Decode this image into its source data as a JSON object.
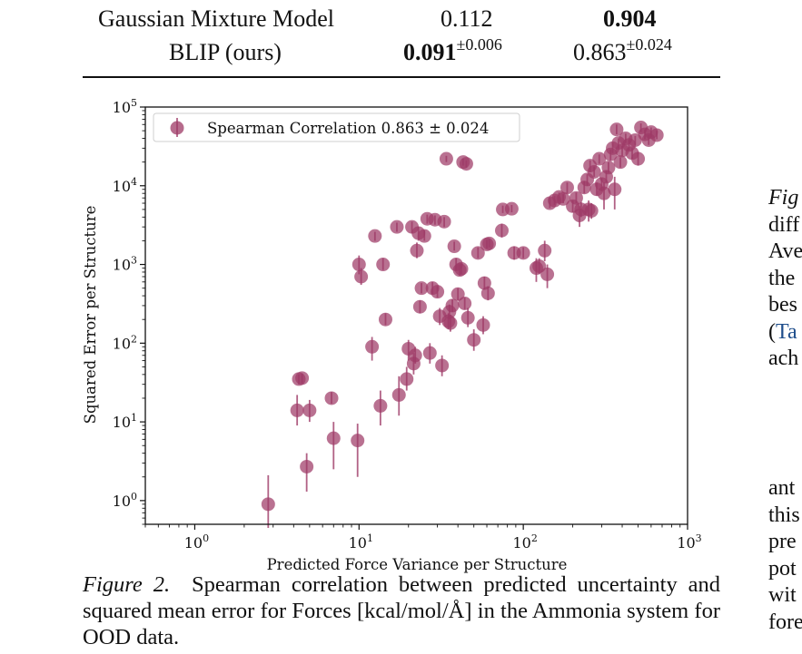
{
  "table": {
    "rows": [
      {
        "method": "Gaussian Mixture Model",
        "col1": "0.112",
        "col1_pm": "",
        "col2": "0.904",
        "col2_pm": ""
      },
      {
        "method": "BLIP (ours)",
        "col1": "0.091",
        "col1_pm": "±0.006",
        "col2": "0.863",
        "col2_pm": "±0.024"
      }
    ]
  },
  "caption": {
    "label": "Figure 2.",
    "text": "Spearman correlation between predicted uncertainty and squared mean error for Forces [kcal/mol/Å] in the Ammonia system for OOD data."
  },
  "side_text": {
    "lines_top": [
      "Fig",
      "diff",
      "Ave",
      "the",
      "bes",
      "(",
      "Ta",
      "ach"
    ],
    "lines_bottom": [
      "ant",
      "this",
      "pre",
      "pot",
      "wit",
      "fore"
    ]
  },
  "chart_data": {
    "type": "scatter",
    "title": "",
    "xlabel": "Predicted Force Variance per Structure",
    "ylabel": "Squared Error per Structure",
    "xscale": "log",
    "yscale": "log",
    "xlim": [
      0.5,
      1000
    ],
    "ylim": [
      0.5,
      100000
    ],
    "xticks": [
      "10^0",
      "10^1",
      "10^2",
      "10^3"
    ],
    "yticks": [
      "10^0",
      "10^1",
      "10^2",
      "10^3",
      "10^4",
      "10^5"
    ],
    "legend": {
      "placement": "top-left",
      "label": "Spearman Correlation 0.863 ± 0.024"
    },
    "marker_color": "#9e3a66",
    "series": [
      {
        "name": "Spearman Correlation 0.863 ± 0.024",
        "points": [
          {
            "x": 2.8,
            "y": 0.9,
            "lo": 0.45,
            "hi": 2.1
          },
          {
            "x": 4.2,
            "y": 14,
            "lo": 9,
            "hi": 22
          },
          {
            "x": 4.3,
            "y": 35,
            "lo": 30,
            "hi": 40
          },
          {
            "x": 4.5,
            "y": 36,
            "lo": 31,
            "hi": 41
          },
          {
            "x": 4.8,
            "y": 2.7,
            "lo": 1.3,
            "hi": 4
          },
          {
            "x": 5.0,
            "y": 14,
            "lo": 10,
            "hi": 19
          },
          {
            "x": 6.8,
            "y": 20,
            "lo": 17,
            "hi": 24
          },
          {
            "x": 7.0,
            "y": 6.2,
            "lo": 2.5,
            "hi": 10
          },
          {
            "x": 9.8,
            "y": 5.8,
            "lo": 2.0,
            "hi": 9.5
          },
          {
            "x": 10,
            "y": 1000,
            "lo": 750,
            "hi": 1300
          },
          {
            "x": 10.3,
            "y": 700,
            "lo": 550,
            "hi": 900
          },
          {
            "x": 12,
            "y": 90,
            "lo": 60,
            "hi": 120
          },
          {
            "x": 12.5,
            "y": 2300,
            "lo": 2000,
            "hi": 2600
          },
          {
            "x": 13.5,
            "y": 16,
            "lo": 9,
            "hi": 25
          },
          {
            "x": 14,
            "y": 1000,
            "lo": 850,
            "hi": 1200
          },
          {
            "x": 14.5,
            "y": 200,
            "lo": 170,
            "hi": 240
          },
          {
            "x": 17,
            "y": 3000,
            "lo": 2600,
            "hi": 3400
          },
          {
            "x": 17.5,
            "y": 22,
            "lo": 12,
            "hi": 38
          },
          {
            "x": 19.5,
            "y": 35,
            "lo": 25,
            "hi": 50
          },
          {
            "x": 20,
            "y": 85,
            "lo": 60,
            "hi": 110
          },
          {
            "x": 21,
            "y": 3000,
            "lo": 2500,
            "hi": 3500
          },
          {
            "x": 21.5,
            "y": 55,
            "lo": 40,
            "hi": 75
          },
          {
            "x": 22,
            "y": 70,
            "lo": 55,
            "hi": 90
          },
          {
            "x": 22.5,
            "y": 1500,
            "lo": 1200,
            "hi": 1900
          },
          {
            "x": 23,
            "y": 2500,
            "lo": 2000,
            "hi": 3000
          },
          {
            "x": 23.5,
            "y": 290,
            "lo": 240,
            "hi": 350
          },
          {
            "x": 24,
            "y": 500,
            "lo": 430,
            "hi": 580
          },
          {
            "x": 25,
            "y": 2300,
            "lo": 2000,
            "hi": 2700
          },
          {
            "x": 26,
            "y": 3800,
            "lo": 3300,
            "hi": 4300
          },
          {
            "x": 27,
            "y": 75,
            "lo": 55,
            "hi": 100
          },
          {
            "x": 28,
            "y": 500,
            "lo": 420,
            "hi": 600
          },
          {
            "x": 29,
            "y": 3700,
            "lo": 3200,
            "hi": 4200
          },
          {
            "x": 30,
            "y": 450,
            "lo": 380,
            "hi": 530
          },
          {
            "x": 31,
            "y": 220,
            "lo": 170,
            "hi": 280
          },
          {
            "x": 32,
            "y": 52,
            "lo": 38,
            "hi": 70
          },
          {
            "x": 33,
            "y": 3500,
            "lo": 3000,
            "hi": 4000
          },
          {
            "x": 34,
            "y": 22000,
            "lo": 20000,
            "hi": 24000
          },
          {
            "x": 35,
            "y": 190,
            "lo": 150,
            "hi": 240
          },
          {
            "x": 35.5,
            "y": 250,
            "lo": 200,
            "hi": 310
          },
          {
            "x": 36,
            "y": 180,
            "lo": 140,
            "hi": 230
          },
          {
            "x": 37,
            "y": 300,
            "lo": 250,
            "hi": 360
          },
          {
            "x": 38,
            "y": 1700,
            "lo": 1500,
            "hi": 1950
          },
          {
            "x": 39,
            "y": 1000,
            "lo": 850,
            "hi": 1200
          },
          {
            "x": 40,
            "y": 420,
            "lo": 350,
            "hi": 500
          },
          {
            "x": 41,
            "y": 850,
            "lo": 720,
            "hi": 1000
          },
          {
            "x": 42,
            "y": 880,
            "lo": 750,
            "hi": 1030
          },
          {
            "x": 43,
            "y": 20000,
            "lo": 18000,
            "hi": 22000
          },
          {
            "x": 44,
            "y": 320,
            "lo": 270,
            "hi": 380
          },
          {
            "x": 45,
            "y": 19000,
            "lo": 17000,
            "hi": 21000
          },
          {
            "x": 46,
            "y": 210,
            "lo": 160,
            "hi": 280
          },
          {
            "x": 50,
            "y": 110,
            "lo": 80,
            "hi": 150
          },
          {
            "x": 53,
            "y": 1400,
            "lo": 1200,
            "hi": 1650
          },
          {
            "x": 57,
            "y": 170,
            "lo": 130,
            "hi": 220
          },
          {
            "x": 58,
            "y": 580,
            "lo": 480,
            "hi": 700
          },
          {
            "x": 60,
            "y": 1800,
            "lo": 1600,
            "hi": 2050
          },
          {
            "x": 61,
            "y": 430,
            "lo": 350,
            "hi": 530
          },
          {
            "x": 62,
            "y": 1850,
            "lo": 1650,
            "hi": 2100
          },
          {
            "x": 74,
            "y": 2700,
            "lo": 2200,
            "hi": 3300
          },
          {
            "x": 75,
            "y": 5000,
            "lo": 4500,
            "hi": 5600
          },
          {
            "x": 85,
            "y": 5100,
            "lo": 4600,
            "hi": 5700
          },
          {
            "x": 88,
            "y": 1400,
            "lo": 1150,
            "hi": 1700
          },
          {
            "x": 100,
            "y": 1400,
            "lo": 1200,
            "hi": 1650
          },
          {
            "x": 120,
            "y": 900,
            "lo": 600,
            "hi": 1200
          },
          {
            "x": 125,
            "y": 950,
            "lo": 750,
            "hi": 1200
          },
          {
            "x": 135,
            "y": 1500,
            "lo": 1100,
            "hi": 2000
          },
          {
            "x": 140,
            "y": 750,
            "lo": 500,
            "hi": 1000
          },
          {
            "x": 145,
            "y": 6000,
            "lo": 5200,
            "hi": 7000
          },
          {
            "x": 155,
            "y": 6500,
            "lo": 5700,
            "hi": 7400
          },
          {
            "x": 165,
            "y": 7200,
            "lo": 6300,
            "hi": 8200
          },
          {
            "x": 175,
            "y": 6800,
            "lo": 6000,
            "hi": 7800
          },
          {
            "x": 185,
            "y": 9500,
            "lo": 8000,
            "hi": 11000
          },
          {
            "x": 200,
            "y": 5500,
            "lo": 4600,
            "hi": 6500
          },
          {
            "x": 210,
            "y": 7000,
            "lo": 6000,
            "hi": 8200
          },
          {
            "x": 220,
            "y": 4200,
            "lo": 3000,
            "hi": 5500
          },
          {
            "x": 225,
            "y": 5000,
            "lo": 4000,
            "hi": 6200
          },
          {
            "x": 235,
            "y": 9500,
            "lo": 8000,
            "hi": 11500
          },
          {
            "x": 245,
            "y": 12000,
            "lo": 10000,
            "hi": 14000
          },
          {
            "x": 250,
            "y": 5000,
            "lo": 3500,
            "hi": 6500
          },
          {
            "x": 255,
            "y": 18000,
            "lo": 15000,
            "hi": 21000
          },
          {
            "x": 260,
            "y": 4800,
            "lo": 3800,
            "hi": 6000
          },
          {
            "x": 270,
            "y": 15000,
            "lo": 13000,
            "hi": 17500
          },
          {
            "x": 280,
            "y": 9000,
            "lo": 7500,
            "hi": 11000
          },
          {
            "x": 290,
            "y": 22000,
            "lo": 19000,
            "hi": 25000
          },
          {
            "x": 300,
            "y": 10500,
            "lo": 8500,
            "hi": 12500
          },
          {
            "x": 310,
            "y": 8000,
            "lo": 5000,
            "hi": 11000
          },
          {
            "x": 320,
            "y": 13000,
            "lo": 11000,
            "hi": 15500
          },
          {
            "x": 330,
            "y": 17000,
            "lo": 14500,
            "hi": 20000
          },
          {
            "x": 340,
            "y": 25000,
            "lo": 21000,
            "hi": 29000
          },
          {
            "x": 350,
            "y": 30000,
            "lo": 26000,
            "hi": 35000
          },
          {
            "x": 360,
            "y": 9000,
            "lo": 5000,
            "hi": 13000
          },
          {
            "x": 370,
            "y": 52000,
            "lo": 45000,
            "hi": 60000
          },
          {
            "x": 380,
            "y": 35000,
            "lo": 30000,
            "hi": 40000
          },
          {
            "x": 390,
            "y": 20000,
            "lo": 17000,
            "hi": 23000
          },
          {
            "x": 400,
            "y": 28000,
            "lo": 24000,
            "hi": 32000
          },
          {
            "x": 420,
            "y": 40000,
            "lo": 35000,
            "hi": 46000
          },
          {
            "x": 440,
            "y": 33000,
            "lo": 28000,
            "hi": 38000
          },
          {
            "x": 460,
            "y": 26000,
            "lo": 22000,
            "hi": 30000
          },
          {
            "x": 480,
            "y": 38000,
            "lo": 33000,
            "hi": 43000
          },
          {
            "x": 500,
            "y": 22000,
            "lo": 18000,
            "hi": 27000
          },
          {
            "x": 520,
            "y": 55000,
            "lo": 48000,
            "hi": 62000
          },
          {
            "x": 550,
            "y": 45000,
            "lo": 39000,
            "hi": 52000
          },
          {
            "x": 580,
            "y": 38000,
            "lo": 33000,
            "hi": 44000
          },
          {
            "x": 600,
            "y": 48000,
            "lo": 42000,
            "hi": 55000
          },
          {
            "x": 650,
            "y": 44000,
            "lo": 39000,
            "hi": 50000
          }
        ]
      }
    ]
  }
}
